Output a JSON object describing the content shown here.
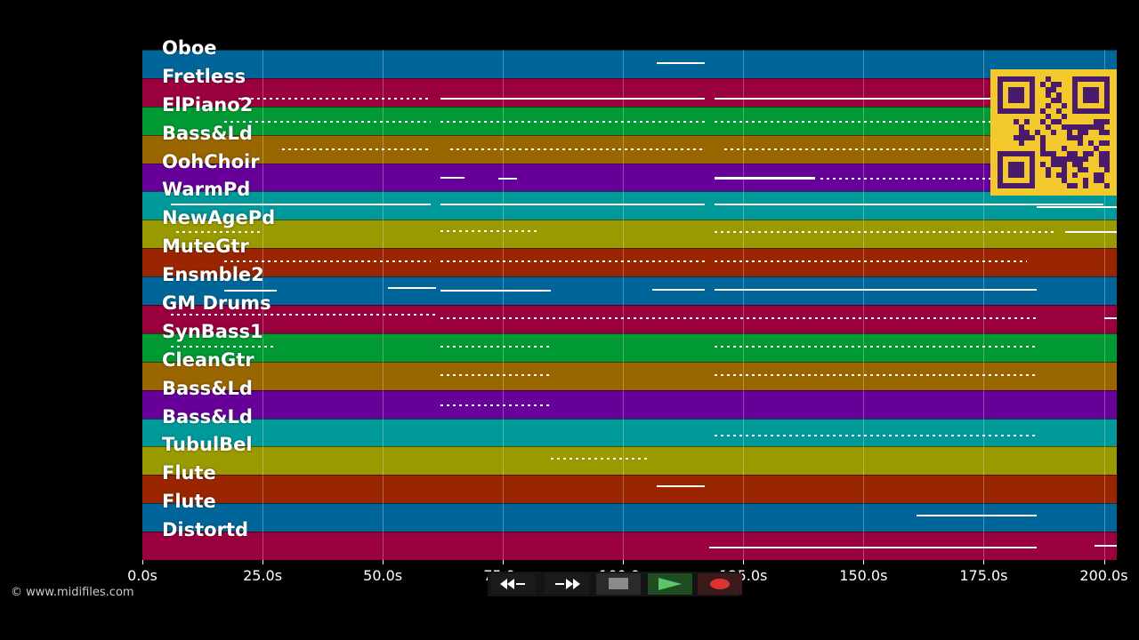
{
  "tracks": [
    {
      "name": "Oboe",
      "color": "#006699"
    },
    {
      "name": "Fretless",
      "color": "#99003d"
    },
    {
      "name": "ElPiano2",
      "color": "#009933"
    },
    {
      "name": "Bass&Ld",
      "color": "#996600"
    },
    {
      "name": "OohChoir",
      "color": "#660099"
    },
    {
      "name": "WarmPd",
      "color": "#009999"
    },
    {
      "name": "NewAgePd",
      "color": "#999900"
    },
    {
      "name": "MuteGtr",
      "color": "#992600"
    },
    {
      "name": "Ensmble2",
      "color": "#006699"
    },
    {
      "name": "GM Drums",
      "color": "#99003d"
    },
    {
      "name": "SynBass1",
      "color": "#009933"
    },
    {
      "name": "CleanGtr",
      "color": "#996600"
    },
    {
      "name": "Bass&Ld",
      "color": "#660099"
    },
    {
      "name": "Bass&Ld",
      "color": "#009999"
    },
    {
      "name": "TubulBel",
      "color": "#999900"
    },
    {
      "name": "Flute",
      "color": "#992600"
    },
    {
      "name": "Flute",
      "color": "#006699"
    },
    {
      "name": "Distortd",
      "color": "#99003d"
    }
  ],
  "x_axis": {
    "min_s": 0,
    "max_s": 203,
    "ticks": [
      "0.0s",
      "25.0s",
      "50.0s",
      "75.0s",
      "100.0s",
      "125.0s",
      "150.0s",
      "175.0s",
      "200.0s"
    ]
  },
  "copyright": "© www.midifiles.com",
  "controls": {
    "rewind": "rewind-icon",
    "fast_forward": "fast-forward-icon",
    "stop": "stop-icon",
    "play": "play-icon",
    "record": "record-icon"
  },
  "colors": {
    "background": "#000000",
    "qr_background": "#f2c82c",
    "qr_foreground": "#4a1a6b"
  }
}
